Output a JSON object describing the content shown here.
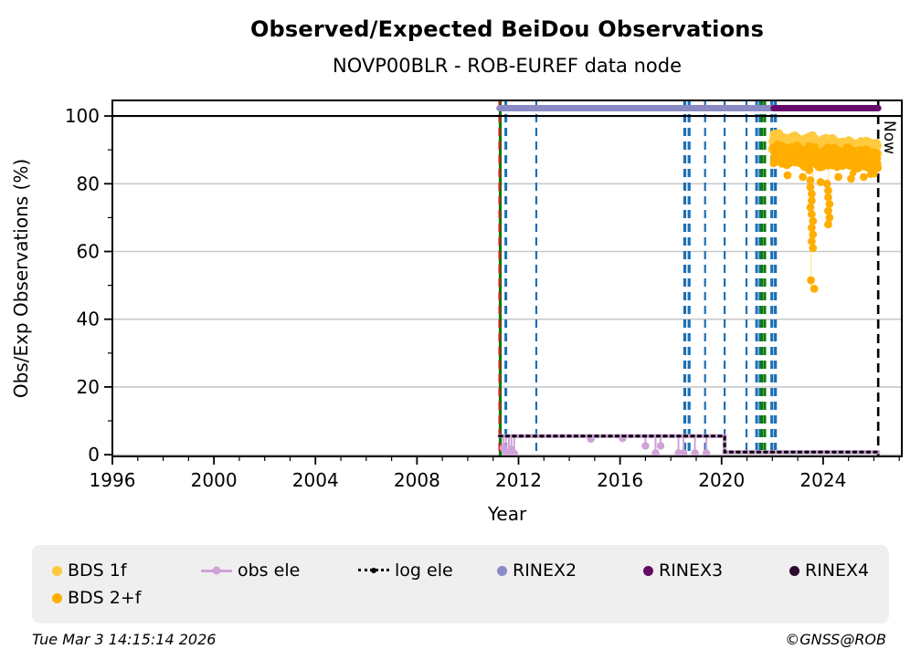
{
  "footer": {
    "timestamp": "Tue Mar  3 14:15:14 2026",
    "credit": "©GNSS@ROB"
  },
  "legend": {
    "position": "bottom",
    "items": [
      {
        "label": "BDS 1f",
        "marker": "dot",
        "color": "#FFC93C"
      },
      {
        "label": "obs ele",
        "marker": "line-dot",
        "color": "#CFA3D8"
      },
      {
        "label": "log ele",
        "marker": "dotted-line-dot",
        "color": "#000000"
      },
      {
        "label": "RINEX2",
        "marker": "dot",
        "color": "#8A8AC4"
      },
      {
        "label": "RINEX3",
        "marker": "dot",
        "color": "#650A68"
      },
      {
        "label": "RINEX4",
        "marker": "dot",
        "color": "#2E0930"
      },
      {
        "label": "BDS 2+f",
        "marker": "dot",
        "color": "#FFAE00"
      }
    ]
  },
  "chart_data": {
    "type": "scatter",
    "title": "Observed/Expected BeiDou Observations",
    "subtitle": "NOVP00BLR - ROB-EUREF data node",
    "xlabel": "Year",
    "ylabel": "Obs/Exp Observations (%)",
    "xlim": [
      1996,
      2027.1
    ],
    "ylim": [
      -0.5,
      104.6
    ],
    "xticks": [
      1996,
      2000,
      2004,
      2008,
      2012,
      2016,
      2020,
      2024
    ],
    "yticks": [
      0,
      20,
      40,
      60,
      80,
      100
    ],
    "x_minor_step": 1,
    "y_minor_step": 10,
    "grid": "horizontal-major-light-gray",
    "grid_color": "#c9c9c9",
    "hlines": [
      {
        "y": 100,
        "color": "#000000",
        "style": "solid",
        "width": 2.2
      }
    ],
    "now_line": {
      "x": 2026.17,
      "label": "Now",
      "color": "#000000",
      "style": "dashed",
      "width": 2.6
    },
    "event_lines": [
      {
        "x": 2011.28,
        "color": "#0a7a0a",
        "style": "solid",
        "width": 3.2
      },
      {
        "x": 2011.25,
        "color": "#d02020",
        "style": "dashed",
        "width": 2.4
      },
      {
        "x": 2011.5,
        "color": "#1b6fb5",
        "style": "dashed",
        "width": 3.0
      },
      {
        "x": 2012.7,
        "color": "#1b6fb5",
        "style": "dashed",
        "width": 2.2
      },
      {
        "x": 2018.55,
        "color": "#1b6fb5",
        "style": "dashed",
        "width": 3.2
      },
      {
        "x": 2018.72,
        "color": "#1b6fb5",
        "style": "dashed",
        "width": 3.2
      },
      {
        "x": 2019.35,
        "color": "#1b6fb5",
        "style": "dashed",
        "width": 2.2
      },
      {
        "x": 2020.12,
        "color": "#1b6fb5",
        "style": "dashed",
        "width": 2.2
      },
      {
        "x": 2020.98,
        "color": "#1b6fb5",
        "style": "dashed",
        "width": 2.2
      },
      {
        "x": 2021.38,
        "color": "#1b6fb5",
        "style": "dashed",
        "width": 3.0
      },
      {
        "x": 2021.5,
        "color": "#1b6fb5",
        "style": "dashed",
        "width": 2.2
      },
      {
        "x": 2021.58,
        "color": "#0a7a0a",
        "style": "dashed",
        "width": 3.0
      },
      {
        "x": 2021.7,
        "color": "#0a7a0a",
        "style": "dashed",
        "width": 3.0
      },
      {
        "x": 2021.98,
        "color": "#1b6fb5",
        "style": "dashed",
        "width": 3.2
      },
      {
        "x": 2022.12,
        "color": "#1b6fb5",
        "style": "dashed",
        "width": 3.2
      }
    ],
    "series": [
      {
        "name": "RINEX2",
        "type": "hline-segment",
        "y": 102.3,
        "x_start": 2011.25,
        "x_end": 2022.05,
        "color": "#8A8AC4",
        "width": 7
      },
      {
        "name": "RINEX3",
        "type": "hline-segment",
        "y": 102.3,
        "x_start": 2022.05,
        "x_end": 2026.17,
        "color": "#650A68",
        "width": 7
      },
      {
        "name": "obs ele",
        "type": "step-line",
        "color": "#CFA3D8",
        "width": 4.5,
        "style": "solid",
        "points": [
          [
            2011.25,
            5.5
          ],
          [
            2020.12,
            5.5
          ],
          [
            2020.12,
            0.8
          ],
          [
            2026.17,
            0.8
          ]
        ],
        "lollipops": [
          [
            2011.4,
            2.0
          ],
          [
            2011.5,
            0.4
          ],
          [
            2011.62,
            0.4
          ],
          [
            2011.72,
            1.5
          ],
          [
            2011.83,
            0.4
          ],
          [
            2014.85,
            4.6
          ],
          [
            2016.1,
            4.8
          ],
          [
            2017.0,
            2.6
          ],
          [
            2017.4,
            0.5
          ],
          [
            2017.6,
            2.6
          ],
          [
            2018.3,
            0.5
          ],
          [
            2018.5,
            0.5
          ],
          [
            2018.95,
            0.5
          ],
          [
            2019.4,
            0.5
          ]
        ]
      },
      {
        "name": "log ele",
        "type": "step-line",
        "color": "#000000",
        "width": 3,
        "style": "dotted",
        "points": [
          [
            2011.25,
            5.5
          ],
          [
            2020.12,
            5.5
          ],
          [
            2020.12,
            0.8
          ],
          [
            2026.17,
            0.8
          ]
        ]
      },
      {
        "name": "BDS 1f",
        "type": "scatter-band",
        "color": "#FFCA3E",
        "r": 4.4,
        "n": 430,
        "seed": 7,
        "x_start": 2022.0,
        "x_end": 2026.15,
        "y_mean_start": 92.2,
        "y_mean_end": 90.0,
        "y_spread": 2.3,
        "outliers": [],
        "stems": []
      },
      {
        "name": "BDS 2+f",
        "type": "scatter-band",
        "color": "#FFAE00",
        "r": 4.4,
        "n": 430,
        "seed": 13,
        "x_start": 2022.05,
        "x_end": 2026.15,
        "y_mean_start": 88.6,
        "y_mean_end": 87.2,
        "y_spread": 2.7,
        "stems": [
          [
            2023.52,
            85,
            49
          ],
          [
            2023.6,
            85,
            61
          ],
          [
            2024.22,
            85,
            68
          ]
        ],
        "outliers": [
          [
            2022.6,
            82.5
          ],
          [
            2023.2,
            82.0
          ],
          [
            2023.45,
            84.0
          ],
          [
            2023.5,
            81.0
          ],
          [
            2023.5,
            79.0
          ],
          [
            2023.55,
            77.0
          ],
          [
            2023.55,
            75.0
          ],
          [
            2023.5,
            73.0
          ],
          [
            2023.55,
            71.0
          ],
          [
            2023.6,
            69.0
          ],
          [
            2023.55,
            67.0
          ],
          [
            2023.6,
            65.0
          ],
          [
            2023.55,
            63.0
          ],
          [
            2023.6,
            61.0
          ],
          [
            2023.52,
            51.5
          ],
          [
            2023.65,
            49.0
          ],
          [
            2024.15,
            80.0
          ],
          [
            2024.2,
            78.0
          ],
          [
            2024.2,
            76.0
          ],
          [
            2024.25,
            74.0
          ],
          [
            2024.2,
            72.0
          ],
          [
            2024.25,
            70.0
          ],
          [
            2024.2,
            68.0
          ],
          [
            2023.9,
            80.5
          ],
          [
            2024.6,
            82.0
          ],
          [
            2025.1,
            81.5
          ],
          [
            2025.6,
            82.0
          ],
          [
            2026.0,
            83.0
          ]
        ]
      }
    ]
  }
}
